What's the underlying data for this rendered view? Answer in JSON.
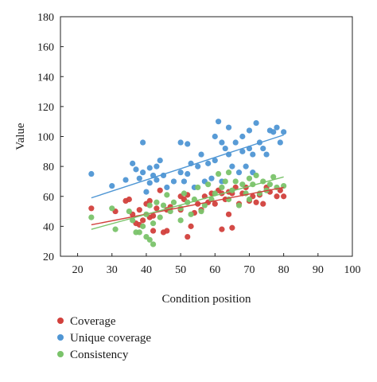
{
  "chart_data": {
    "type": "scatter",
    "xlabel": "Condition position",
    "ylabel": "Value",
    "xlim": [
      15,
      100
    ],
    "ylim": [
      20,
      180
    ],
    "xticks": [
      20,
      30,
      40,
      50,
      60,
      70,
      80,
      90,
      100
    ],
    "yticks": [
      20,
      40,
      60,
      80,
      100,
      120,
      140,
      160,
      180
    ],
    "grid": false,
    "legend_position": "bottom-left",
    "series": [
      {
        "name": "Coverage",
        "color": "#d2403c",
        "points": [
          [
            24,
            52
          ],
          [
            31,
            50
          ],
          [
            34,
            57
          ],
          [
            35,
            58
          ],
          [
            36,
            48
          ],
          [
            37,
            42
          ],
          [
            38,
            41
          ],
          [
            38,
            51
          ],
          [
            39,
            44
          ],
          [
            40,
            55
          ],
          [
            41,
            46
          ],
          [
            41,
            57
          ],
          [
            42,
            37
          ],
          [
            42,
            47
          ],
          [
            43,
            52
          ],
          [
            44,
            64
          ],
          [
            45,
            36
          ],
          [
            46,
            37
          ],
          [
            46,
            51
          ],
          [
            47,
            53
          ],
          [
            50,
            51
          ],
          [
            50,
            60
          ],
          [
            51,
            58
          ],
          [
            52,
            33
          ],
          [
            52,
            61
          ],
          [
            53,
            40
          ],
          [
            54,
            49
          ],
          [
            55,
            55
          ],
          [
            56,
            51
          ],
          [
            57,
            60
          ],
          [
            58,
            56
          ],
          [
            59,
            62
          ],
          [
            60,
            55
          ],
          [
            61,
            64
          ],
          [
            62,
            38
          ],
          [
            62,
            62
          ],
          [
            63,
            58
          ],
          [
            64,
            48
          ],
          [
            64,
            63
          ],
          [
            65,
            39
          ],
          [
            65,
            62
          ],
          [
            66,
            66
          ],
          [
            67,
            55
          ],
          [
            68,
            62
          ],
          [
            69,
            66
          ],
          [
            70,
            57
          ],
          [
            71,
            60
          ],
          [
            72,
            56
          ],
          [
            73,
            61
          ],
          [
            74,
            55
          ],
          [
            75,
            66
          ],
          [
            76,
            63
          ],
          [
            78,
            60
          ],
          [
            79,
            64
          ],
          [
            80,
            60
          ]
        ],
        "trend": [
          [
            24,
            41
          ],
          [
            80,
            66
          ]
        ]
      },
      {
        "name": "Unique coverage",
        "color": "#4f96d4",
        "points": [
          [
            24,
            75
          ],
          [
            30,
            67
          ],
          [
            34,
            71
          ],
          [
            36,
            82
          ],
          [
            37,
            78
          ],
          [
            38,
            72
          ],
          [
            39,
            76
          ],
          [
            39,
            96
          ],
          [
            40,
            63
          ],
          [
            41,
            69
          ],
          [
            41,
            79
          ],
          [
            42,
            74
          ],
          [
            43,
            80
          ],
          [
            43,
            71
          ],
          [
            44,
            84
          ],
          [
            45,
            74
          ],
          [
            46,
            66
          ],
          [
            48,
            70
          ],
          [
            50,
            96
          ],
          [
            50,
            76
          ],
          [
            51,
            70
          ],
          [
            52,
            95
          ],
          [
            52,
            75
          ],
          [
            53,
            82
          ],
          [
            54,
            66
          ],
          [
            55,
            80
          ],
          [
            56,
            88
          ],
          [
            57,
            70
          ],
          [
            58,
            82
          ],
          [
            59,
            72
          ],
          [
            60,
            100
          ],
          [
            60,
            84
          ],
          [
            61,
            110
          ],
          [
            62,
            96
          ],
          [
            62,
            70
          ],
          [
            63,
            92
          ],
          [
            64,
            106
          ],
          [
            64,
            88
          ],
          [
            65,
            80
          ],
          [
            66,
            96
          ],
          [
            67,
            76
          ],
          [
            68,
            100
          ],
          [
            68,
            90
          ],
          [
            69,
            80
          ],
          [
            70,
            104
          ],
          [
            70,
            92
          ],
          [
            71,
            88
          ],
          [
            71,
            76
          ],
          [
            72,
            109
          ],
          [
            73,
            96
          ],
          [
            74,
            92
          ],
          [
            75,
            88
          ],
          [
            76,
            104
          ],
          [
            77,
            103
          ],
          [
            78,
            106
          ],
          [
            79,
            96
          ],
          [
            80,
            103
          ]
        ],
        "trend": [
          [
            24,
            59
          ],
          [
            80,
            101
          ]
        ]
      },
      {
        "name": "Consistency",
        "color": "#7ac36a",
        "points": [
          [
            24,
            46
          ],
          [
            30,
            52
          ],
          [
            31,
            38
          ],
          [
            35,
            50
          ],
          [
            36,
            44
          ],
          [
            37,
            36
          ],
          [
            38,
            36
          ],
          [
            39,
            40
          ],
          [
            40,
            33
          ],
          [
            40,
            48
          ],
          [
            41,
            31
          ],
          [
            41,
            54
          ],
          [
            42,
            28
          ],
          [
            42,
            42
          ],
          [
            43,
            56
          ],
          [
            44,
            46
          ],
          [
            45,
            54
          ],
          [
            46,
            61
          ],
          [
            47,
            50
          ],
          [
            48,
            56
          ],
          [
            50,
            52
          ],
          [
            50,
            44
          ],
          [
            51,
            62
          ],
          [
            52,
            56
          ],
          [
            53,
            48
          ],
          [
            54,
            58
          ],
          [
            55,
            66
          ],
          [
            56,
            50
          ],
          [
            57,
            54
          ],
          [
            58,
            68
          ],
          [
            59,
            58
          ],
          [
            60,
            62
          ],
          [
            61,
            75
          ],
          [
            62,
            66
          ],
          [
            63,
            70
          ],
          [
            64,
            76
          ],
          [
            64,
            58
          ],
          [
            65,
            64
          ],
          [
            66,
            70
          ],
          [
            67,
            54
          ],
          [
            68,
            68
          ],
          [
            69,
            62
          ],
          [
            70,
            72
          ],
          [
            70,
            58
          ],
          [
            71,
            68
          ],
          [
            72,
            74
          ],
          [
            73,
            62
          ],
          [
            74,
            70
          ],
          [
            75,
            64
          ],
          [
            76,
            68
          ],
          [
            77,
            73
          ],
          [
            78,
            66
          ],
          [
            80,
            67
          ]
        ],
        "trend": [
          [
            24,
            38
          ],
          [
            80,
            73
          ]
        ]
      }
    ]
  }
}
